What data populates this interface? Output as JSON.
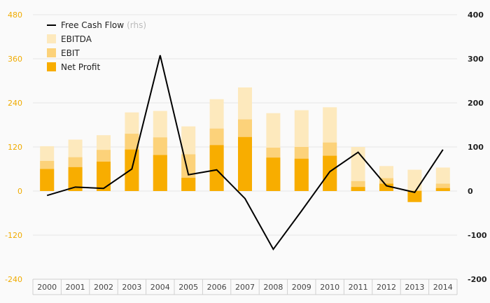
{
  "chart_data": {
    "type": "bar",
    "categories": [
      "2000",
      "2001",
      "2002",
      "2003",
      "2004",
      "2005",
      "2006",
      "2007",
      "2008",
      "2009",
      "2010",
      "2011",
      "2012",
      "2013",
      "2014"
    ],
    "series": [
      {
        "name": "EBITDA",
        "axis": "left",
        "kind": "bar",
        "color": "#fde9bd",
        "values": [
          122,
          140,
          152,
          214,
          218,
          176,
          250,
          282,
          212,
          220,
          228,
          120,
          68,
          58,
          64
        ]
      },
      {
        "name": "EBIT",
        "axis": "left",
        "kind": "bar",
        "color": "#fcd27a",
        "values": [
          82,
          92,
          112,
          156,
          146,
          100,
          170,
          195,
          118,
          120,
          132,
          27,
          35,
          2,
          20
        ]
      },
      {
        "name": "Net Profit",
        "axis": "left",
        "kind": "bar",
        "color": "#f8ad00",
        "values": [
          60,
          65,
          80,
          113,
          98,
          36,
          125,
          147,
          91,
          88,
          96,
          11,
          20,
          -30,
          8
        ]
      },
      {
        "name": "Free Cash Flow",
        "note": "(rhs)",
        "axis": "right",
        "kind": "line",
        "color": "#000000",
        "values": [
          -10,
          9,
          6,
          50,
          308,
          37,
          48,
          -17,
          -132,
          -45,
          44,
          88,
          12,
          -3,
          94
        ]
      }
    ],
    "y_left": {
      "min": -240,
      "max": 480,
      "ticks": [
        "-240",
        "-120",
        "0",
        "120",
        "240",
        "360",
        "480"
      ],
      "color": "#f0ab00"
    },
    "y_right": {
      "min": -200,
      "max": 400,
      "ticks": [
        "-200",
        "-100",
        "0",
        "100",
        "200",
        "300",
        "400"
      ]
    },
    "grid": true,
    "legend": "top-left"
  }
}
